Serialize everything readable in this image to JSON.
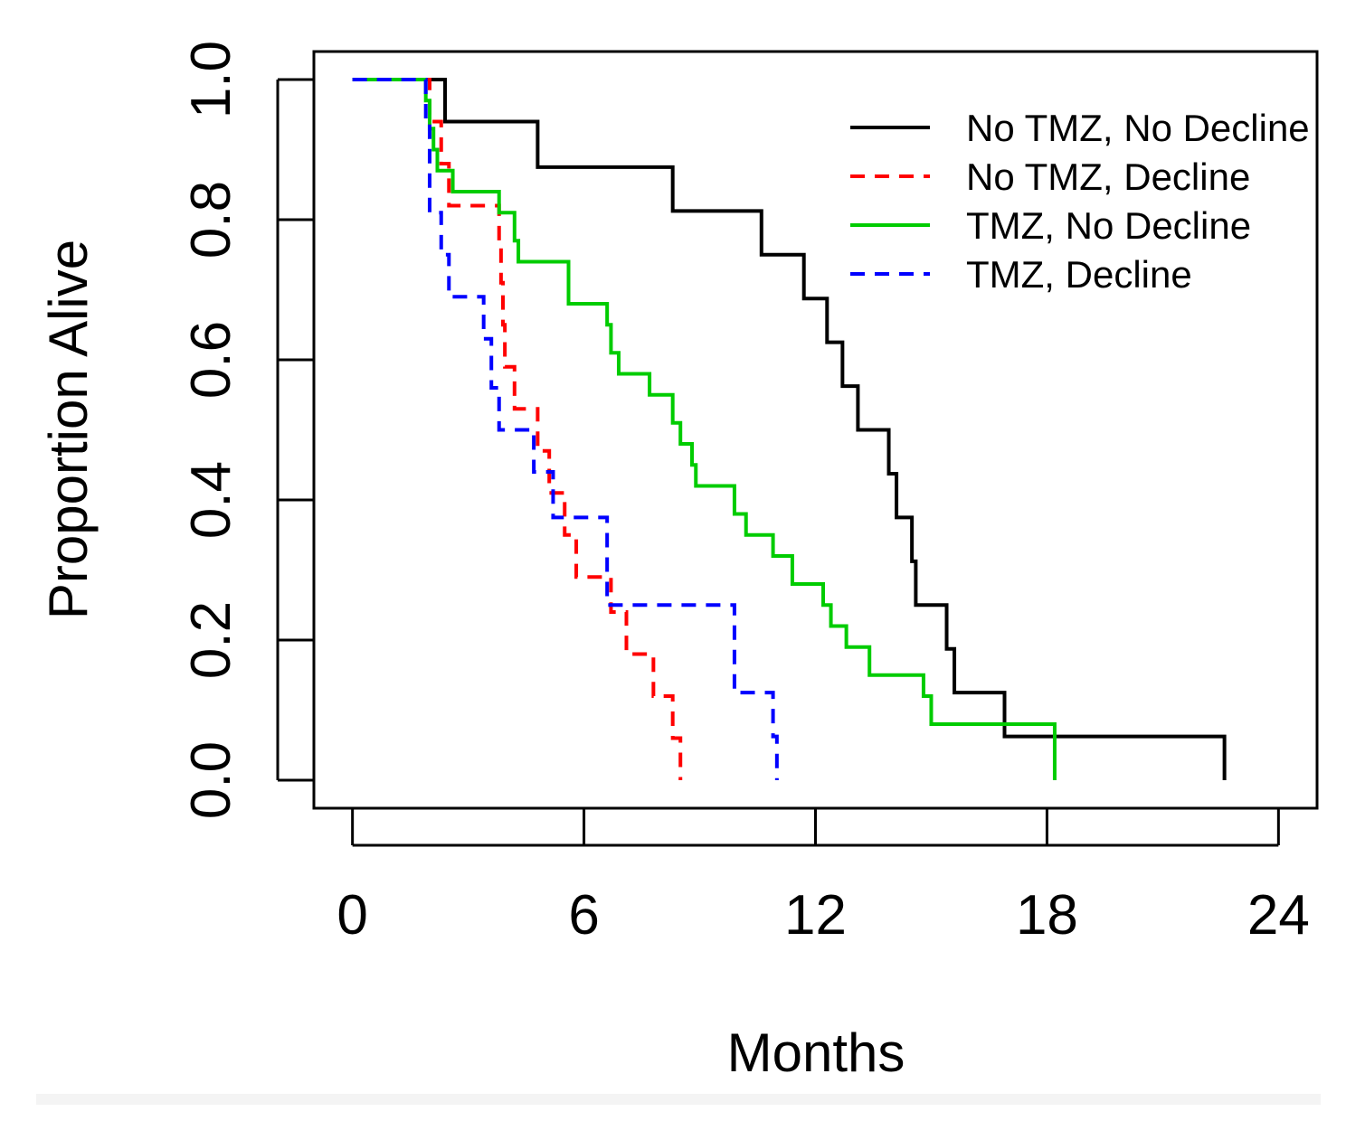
{
  "chart_data": {
    "type": "line",
    "subtype": "kaplan-meier step",
    "title": "",
    "xlabel": "Months",
    "ylabel": "Proportion Alive",
    "xlim": [
      -1.0,
      25.0
    ],
    "ylim": [
      -0.04,
      1.04
    ],
    "x_ticks": [
      0,
      6,
      12,
      18,
      24
    ],
    "x_tick_labels": [
      "0",
      "6",
      "12",
      "18",
      "24"
    ],
    "y_ticks": [
      0.0,
      0.2,
      0.4,
      0.6,
      0.8,
      1.0
    ],
    "y_tick_labels": [
      "0.0",
      "0.2",
      "0.4",
      "0.6",
      "0.8",
      "1.0"
    ],
    "grid": false,
    "legend_position": "top-right",
    "series": [
      {
        "name": "No TMZ, No Decline",
        "color": "#000000",
        "dash": "solid",
        "steps": [
          [
            0,
            1.0
          ],
          [
            2.4,
            0.94
          ],
          [
            4.8,
            0.875
          ],
          [
            8.3,
            0.8125
          ],
          [
            10.6,
            0.75
          ],
          [
            11.7,
            0.6875
          ],
          [
            12.3,
            0.625
          ],
          [
            12.7,
            0.5625
          ],
          [
            13.1,
            0.5
          ],
          [
            13.9,
            0.4375
          ],
          [
            14.1,
            0.375
          ],
          [
            14.5,
            0.3125
          ],
          [
            14.6,
            0.25
          ],
          [
            15.4,
            0.1875
          ],
          [
            15.6,
            0.125
          ],
          [
            16.9,
            0.0625
          ],
          [
            22.6,
            0.0
          ]
        ]
      },
      {
        "name": "No TMZ, Decline",
        "color": "#ff0000",
        "dash": "dashed",
        "steps": [
          [
            0,
            1.0
          ],
          [
            2.0,
            0.94
          ],
          [
            2.3,
            0.88
          ],
          [
            2.5,
            0.82
          ],
          [
            3.8,
            0.76
          ],
          [
            3.85,
            0.71
          ],
          [
            3.9,
            0.65
          ],
          [
            3.95,
            0.59
          ],
          [
            4.2,
            0.53
          ],
          [
            4.8,
            0.47
          ],
          [
            5.1,
            0.41
          ],
          [
            5.5,
            0.35
          ],
          [
            5.8,
            0.29
          ],
          [
            6.7,
            0.24
          ],
          [
            7.1,
            0.18
          ],
          [
            7.8,
            0.12
          ],
          [
            8.3,
            0.06
          ],
          [
            8.5,
            0.0
          ]
        ]
      },
      {
        "name": "TMZ, No Decline",
        "color": "#00cc00",
        "dash": "solid",
        "steps": [
          [
            0,
            1.0
          ],
          [
            1.9,
            0.97
          ],
          [
            2.0,
            0.93
          ],
          [
            2.1,
            0.9
          ],
          [
            2.2,
            0.87
          ],
          [
            2.6,
            0.84
          ],
          [
            3.8,
            0.81
          ],
          [
            4.2,
            0.77
          ],
          [
            4.3,
            0.74
          ],
          [
            5.6,
            0.68
          ],
          [
            6.6,
            0.65
          ],
          [
            6.7,
            0.61
          ],
          [
            6.9,
            0.58
          ],
          [
            7.7,
            0.55
          ],
          [
            8.3,
            0.51
          ],
          [
            8.5,
            0.48
          ],
          [
            8.8,
            0.45
          ],
          [
            8.9,
            0.42
          ],
          [
            9.9,
            0.38
          ],
          [
            10.2,
            0.35
          ],
          [
            10.9,
            0.32
          ],
          [
            11.4,
            0.28
          ],
          [
            12.2,
            0.25
          ],
          [
            12.4,
            0.22
          ],
          [
            12.8,
            0.19
          ],
          [
            13.4,
            0.15
          ],
          [
            14.8,
            0.12
          ],
          [
            15.0,
            0.08
          ],
          [
            18.2,
            0.0
          ]
        ]
      },
      {
        "name": "TMZ, Decline",
        "color": "#0000ff",
        "dash": "dashed",
        "steps": [
          [
            0,
            1.0
          ],
          [
            1.9,
            0.94
          ],
          [
            2.0,
            0.81
          ],
          [
            2.3,
            0.75
          ],
          [
            2.5,
            0.69
          ],
          [
            3.4,
            0.63
          ],
          [
            3.6,
            0.56
          ],
          [
            3.8,
            0.5
          ],
          [
            4.7,
            0.44
          ],
          [
            5.2,
            0.375
          ],
          [
            6.6,
            0.25
          ],
          [
            9.9,
            0.125
          ],
          [
            10.9,
            0.0625
          ],
          [
            11.0,
            0.0
          ]
        ]
      }
    ]
  }
}
